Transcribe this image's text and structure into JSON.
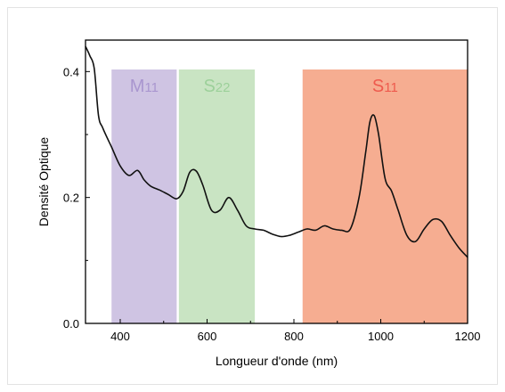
{
  "chart_data": {
    "type": "line",
    "xlabel": "Longueur d'onde (nm)",
    "ylabel": "Densité Optique",
    "xlim": [
      320,
      1200
    ],
    "ylim": [
      0.0,
      0.45
    ],
    "xticks": [
      "400",
      "600",
      "800",
      "1000",
      "1200"
    ],
    "yticks": [
      "0.0",
      "0.2",
      "0.4"
    ],
    "grid": false,
    "bands": [
      {
        "name": "M",
        "sub": "11",
        "x": [
          380,
          530
        ],
        "color": "#cfc4e3",
        "label_color": "#a996cf"
      },
      {
        "name": "S",
        "sub": "22",
        "x": [
          535,
          710
        ],
        "color": "#c9e4c3",
        "label_color": "#9cd09a"
      },
      {
        "name": "S",
        "sub": "11",
        "x": [
          820,
          1200
        ],
        "color": "#f6ad91",
        "label_color": "#ee5a4d"
      }
    ],
    "series": [
      {
        "line_color": "#111111",
        "x": [
          320,
          330,
          340,
          350,
          360,
          380,
          400,
          420,
          440,
          455,
          470,
          490,
          510,
          530,
          545,
          560,
          575,
          590,
          610,
          630,
          650,
          670,
          690,
          710,
          730,
          750,
          770,
          790,
          810,
          830,
          850,
          870,
          890,
          910,
          930,
          950,
          965,
          975,
          985,
          995,
          1010,
          1025,
          1040,
          1060,
          1080,
          1100,
          1120,
          1140,
          1160,
          1180,
          1200
        ],
        "y": [
          0.44,
          0.425,
          0.405,
          0.33,
          0.31,
          0.28,
          0.25,
          0.235,
          0.243,
          0.228,
          0.218,
          0.212,
          0.205,
          0.198,
          0.21,
          0.24,
          0.242,
          0.22,
          0.18,
          0.18,
          0.2,
          0.18,
          0.155,
          0.15,
          0.148,
          0.142,
          0.138,
          0.14,
          0.145,
          0.15,
          0.148,
          0.155,
          0.15,
          0.148,
          0.15,
          0.2,
          0.27,
          0.32,
          0.33,
          0.3,
          0.23,
          0.21,
          0.18,
          0.14,
          0.13,
          0.15,
          0.165,
          0.162,
          0.14,
          0.12,
          0.105
        ]
      }
    ]
  }
}
